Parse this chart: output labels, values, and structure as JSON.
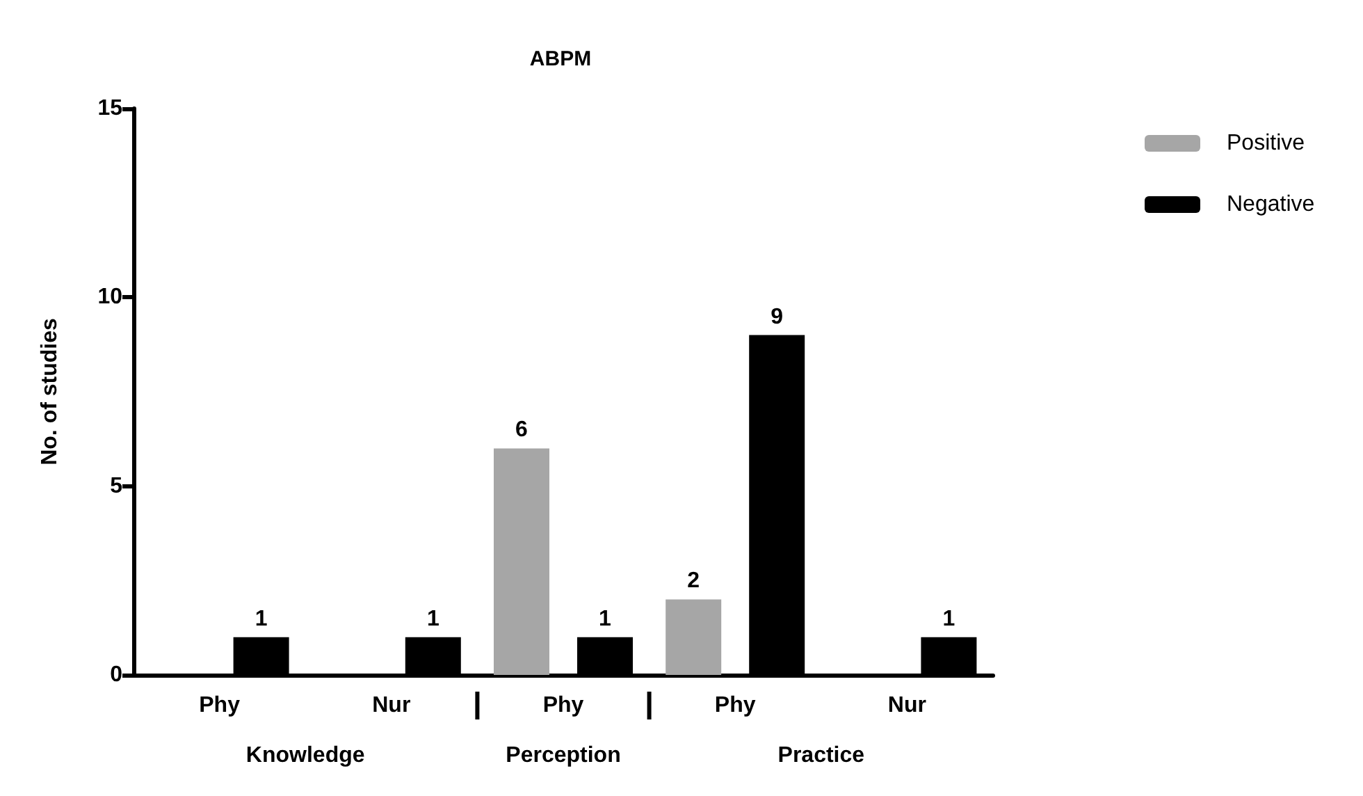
{
  "chart_data": {
    "type": "bar",
    "title": "ABPM",
    "ylabel": "No. of studies",
    "categories": [
      "Phy",
      "Nur",
      "Phy",
      "Phy",
      "Nur"
    ],
    "series": [
      {
        "name": "Positive",
        "color": "#a6a6a6",
        "values": [
          null,
          null,
          6,
          2,
          null
        ]
      },
      {
        "name": "Negative",
        "color": "#000000",
        "values": [
          1,
          1,
          1,
          9,
          1
        ]
      }
    ],
    "annotations": [
      "Knowledge",
      "Perception",
      "Practice"
    ],
    "ylim": [
      0,
      15
    ],
    "yticks": [
      0,
      5,
      10,
      15
    ],
    "data_labels": true,
    "grid": false,
    "legend": "top right"
  }
}
